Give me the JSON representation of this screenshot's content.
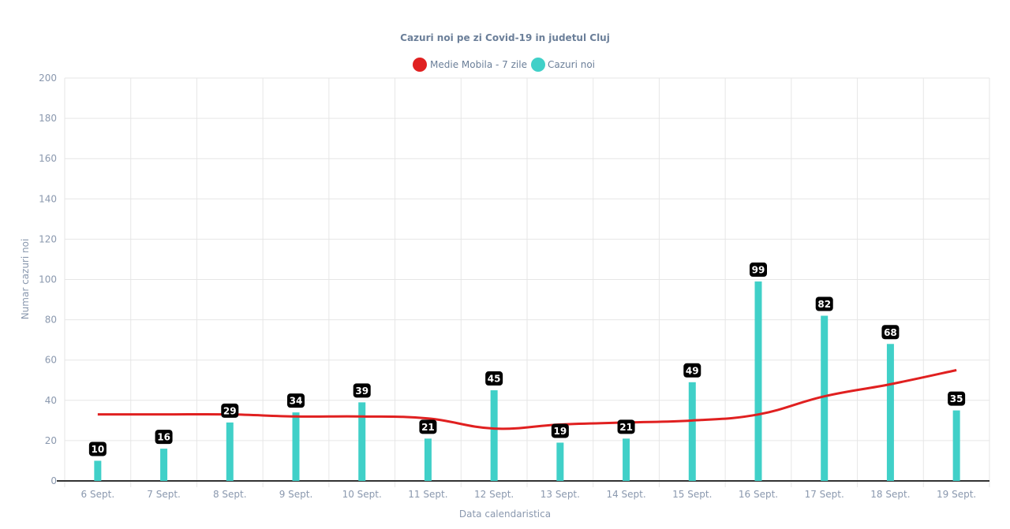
{
  "chart_data": {
    "type": "bar",
    "title": "Cazuri noi pe zi Covid-19 in judetul Cluj",
    "xlabel": "Data calendaristica",
    "ylabel": "Numar cazuri noi",
    "ylim": [
      0,
      200
    ],
    "y_ticks": [
      0,
      20,
      40,
      60,
      80,
      100,
      120,
      140,
      160,
      180,
      200
    ],
    "grid": true,
    "legend_position": "top-center",
    "categories": [
      "6 Sept.",
      "7 Sept.",
      "8 Sept.",
      "9 Sept.",
      "10 Sept.",
      "11 Sept.",
      "12 Sept.",
      "13 Sept.",
      "14 Sept.",
      "15 Sept.",
      "16 Sept.",
      "17 Sept.",
      "18 Sept.",
      "19 Sept."
    ],
    "series": [
      {
        "name": "Medie Mobila - 7 zile",
        "type": "line",
        "color": "#e02020",
        "values": [
          33,
          33,
          33,
          32,
          32,
          31,
          26,
          28,
          29,
          30,
          33,
          42,
          48,
          55
        ]
      },
      {
        "name": "Cazuri noi",
        "type": "bar",
        "color": "#40d0c8",
        "values": [
          10,
          16,
          29,
          34,
          39,
          21,
          45,
          19,
          21,
          49,
          99,
          82,
          68,
          35
        ],
        "data_labels": [
          "10",
          "16",
          "29",
          "34",
          "39",
          "21",
          "45",
          "19",
          "21",
          "49",
          "99",
          "82",
          "68",
          "35"
        ]
      }
    ]
  }
}
